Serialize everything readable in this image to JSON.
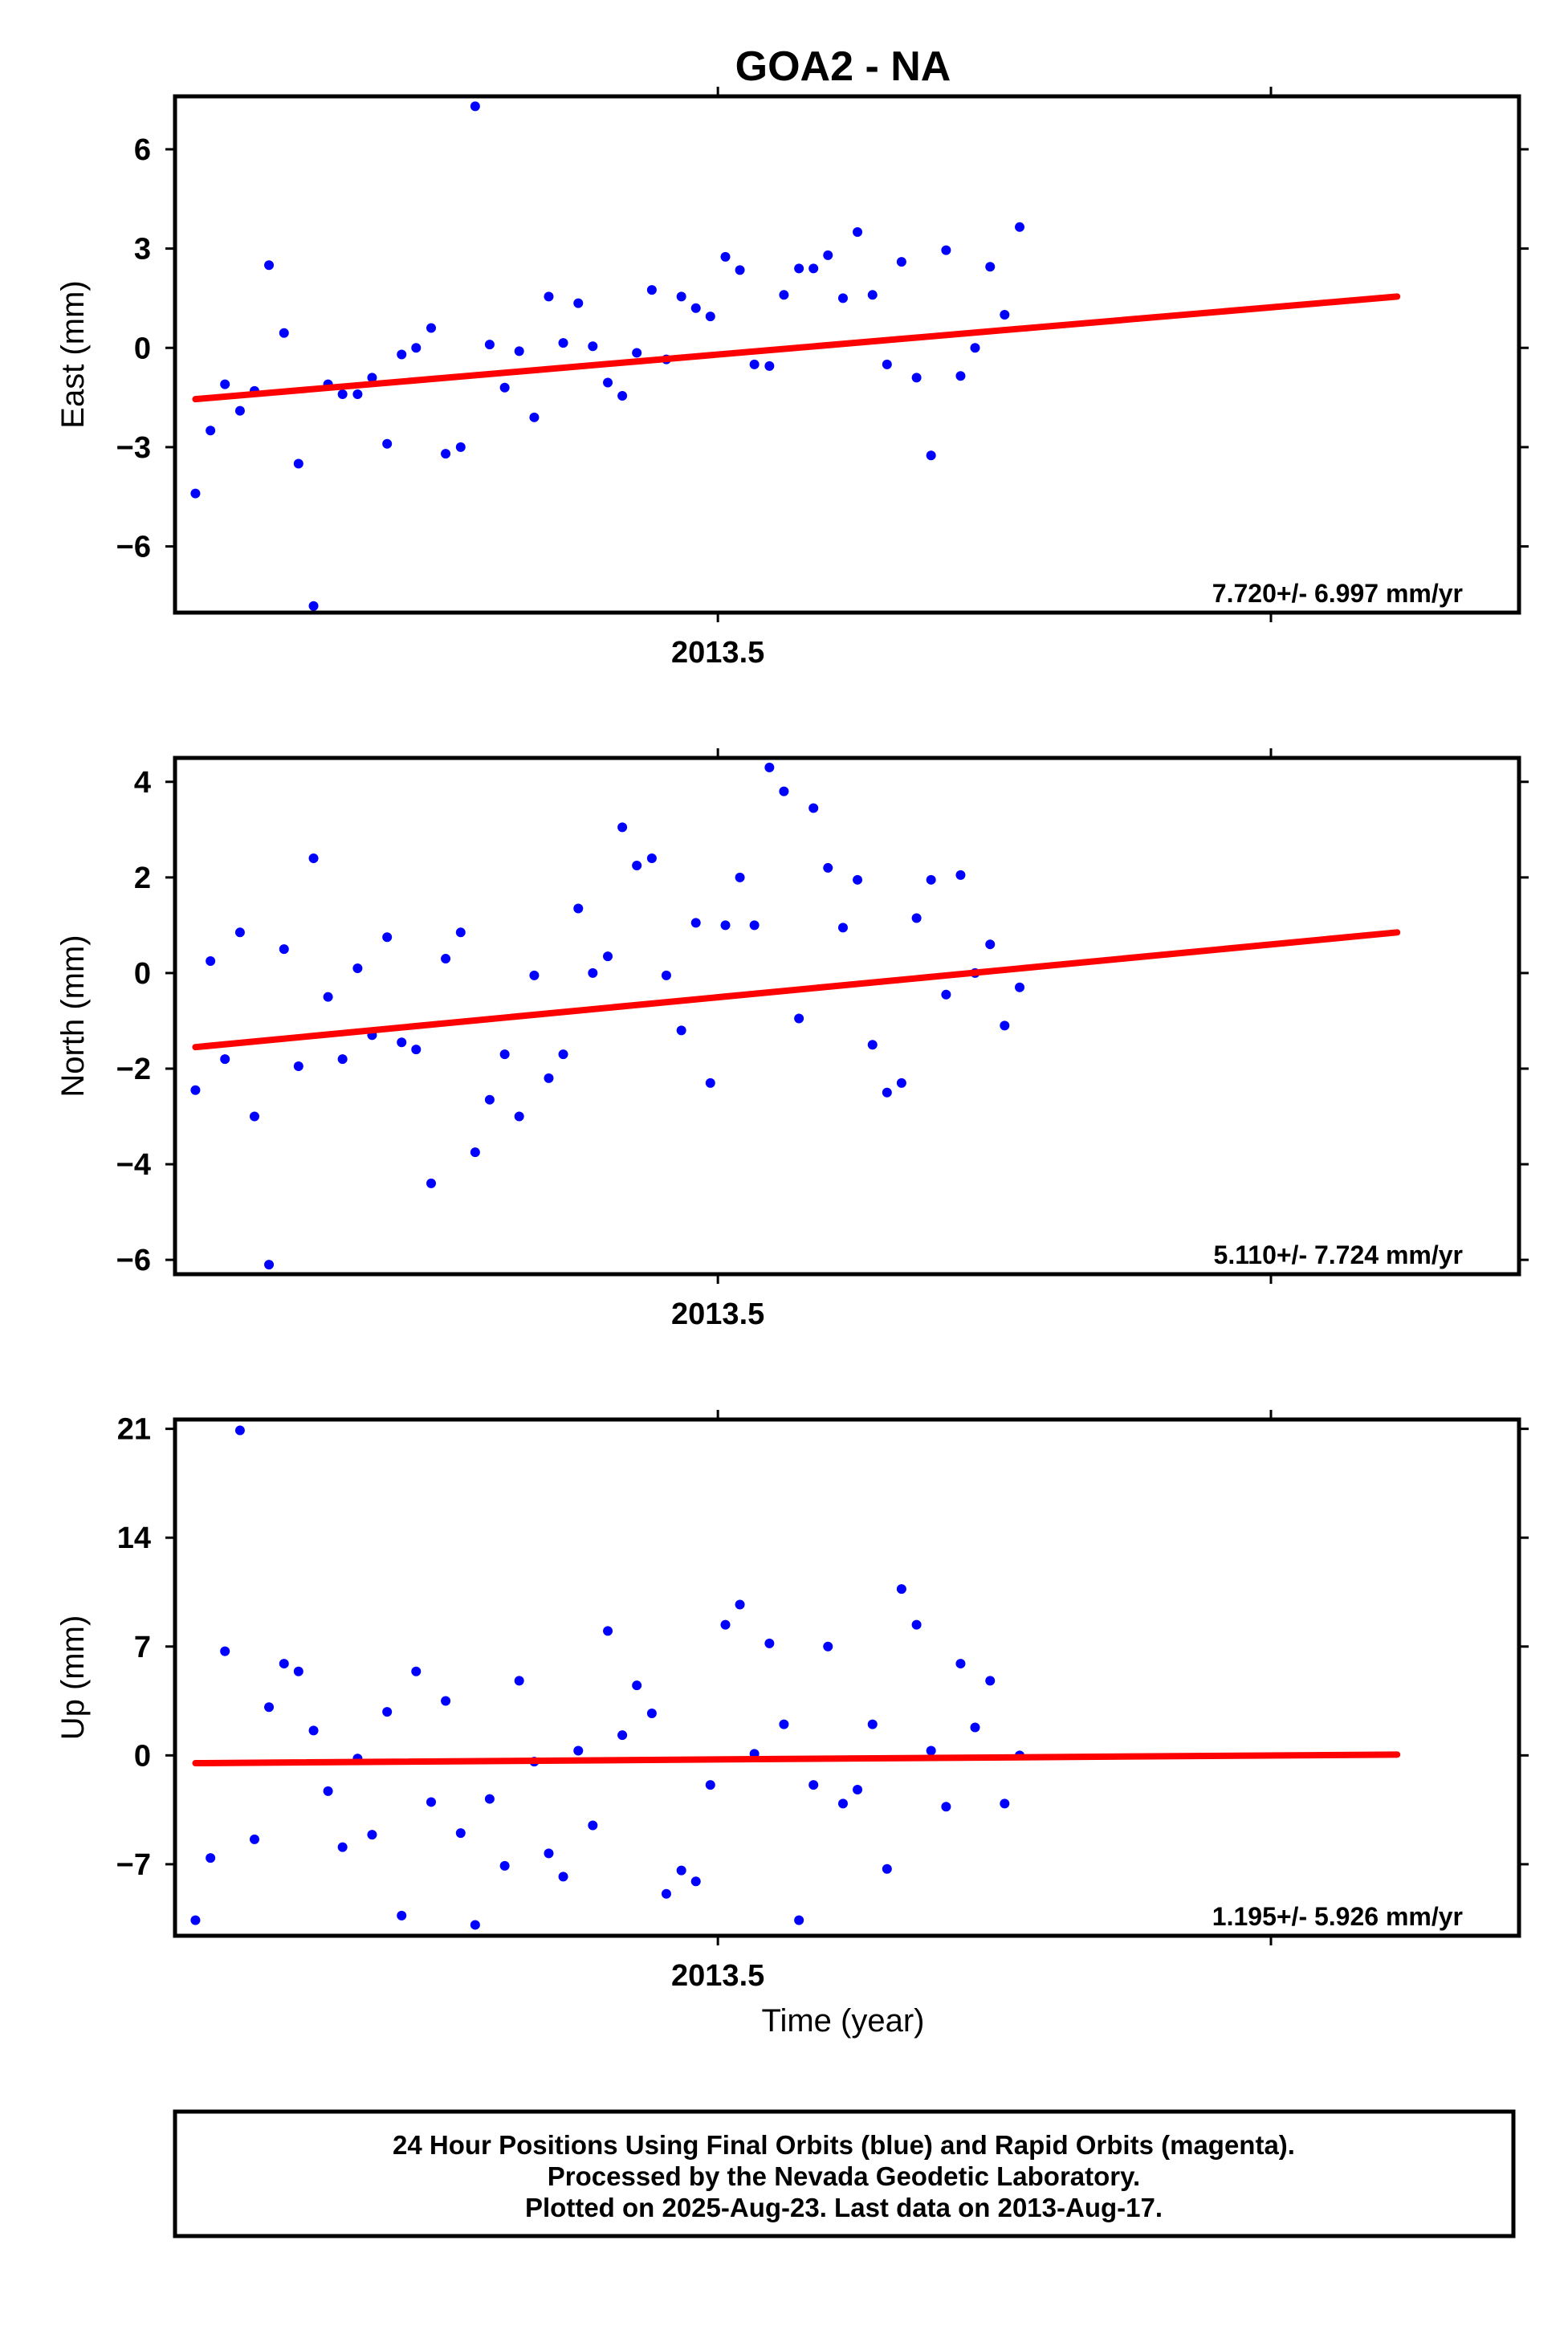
{
  "title": "GOA2 - NA",
  "xlabel": "Time (year)",
  "footer": {
    "lines": [
      "24 Hour Positions Using Final Orbits (blue) and Rapid Orbits (magenta).",
      "Processed by the Nevada Geodetic Laboratory.",
      "Plotted on 2025-Aug-23. Last data on 2013-Aug-17."
    ]
  },
  "colors": {
    "points": "#0000ff",
    "trend": "#ff0000",
    "frame": "#000000"
  },
  "chart_data": [
    {
      "type": "scatter",
      "ylabel": "East (mm)",
      "xlim": [
        2013.3989,
        2013.6492
      ],
      "ylim": [
        -8,
        7.6
      ],
      "xticks": [
        2013.5
      ],
      "xtick_labels": [
        "2013.5"
      ],
      "yticks": [
        6,
        3,
        0,
        -3,
        -6
      ],
      "ytick_labels": [
        "6",
        "3",
        "0",
        "−3",
        "−6"
      ],
      "rate_label": "7.720+/- 6.997 mm/yr",
      "trend": {
        "x": [
          2013.4027,
          2013.6265
        ],
        "y": [
          -1.55,
          1.55
        ]
      },
      "x": [
        2013.4027,
        2013.4055,
        2013.4082,
        2013.411,
        2013.4137,
        2013.4164,
        2013.4192,
        2013.4219,
        2013.4247,
        2013.4274,
        2013.4301,
        2013.4329,
        2013.4356,
        2013.4384,
        2013.4411,
        2013.4438,
        2013.4466,
        2013.4493,
        2013.4521,
        2013.4548,
        2013.4575,
        2013.4603,
        2013.463,
        2013.4658,
        2013.4685,
        2013.4712,
        2013.474,
        2013.4767,
        2013.4795,
        2013.4822,
        2013.4849,
        2013.4877,
        2013.4904,
        2013.4932,
        2013.4959,
        2013.4986,
        2013.5014,
        2013.5041,
        2013.5068,
        2013.5096,
        2013.5123,
        2013.5151,
        2013.5178,
        2013.5205,
        2013.5233,
        2013.526,
        2013.5288,
        2013.5315,
        2013.5342,
        2013.537,
        2013.5397,
        2013.5425,
        2013.5452,
        2013.5479,
        2013.5507,
        2013.5534,
        2013.5562,
        2013.5589,
        2013.5616,
        2013.5644,
        2013.5671,
        2013.5699,
        2013.5726,
        2013.5753,
        2013.5781,
        2013.5808,
        2013.5836,
        2013.5863,
        2013.589,
        2013.5918
      ],
      "y": [
        -4.4,
        -2.5,
        -1.1,
        -1.9,
        -1.3,
        2.5,
        0.45,
        -3.5,
        -7.8,
        -1.1,
        -1.4,
        -1.4,
        -0.9,
        -2.9,
        -0.2,
        0.0,
        0.6,
        -3.2,
        -3.0,
        7.3,
        0.1,
        -1.2,
        -0.1,
        -2.1,
        1.55,
        0.15,
        1.35,
        0.05,
        -1.05,
        -1.45,
        -0.15,
        1.75,
        -0.35,
        1.55,
        1.2,
        0.95,
        2.75,
        2.35,
        -0.5,
        -0.55,
        1.6,
        2.4,
        2.4,
        2.8,
        1.5,
        3.5,
        1.6,
        -0.5,
        2.6,
        -0.9,
        -3.25,
        2.95,
        -0.85,
        0.0,
        2.45,
        1.0,
        3.65,
        null,
        null,
        null,
        null,
        null,
        null,
        null,
        null,
        null,
        null,
        null,
        null,
        null
      ]
    },
    {
      "type": "scatter",
      "ylabel": "North (mm)",
      "xlim": [
        2013.3989,
        2013.6492
      ],
      "ylim": [
        -6.3,
        4.5
      ],
      "xticks": [
        2013.5
      ],
      "xtick_labels": [
        "2013.5"
      ],
      "yticks": [
        4,
        2,
        0,
        -2,
        -4,
        -6
      ],
      "ytick_labels": [
        "4",
        "2",
        "0",
        "−2",
        "−4",
        "−6"
      ],
      "rate_label": "5.110+/- 7.724 mm/yr",
      "trend": {
        "x": [
          2013.4027,
          2013.6265
        ],
        "y": [
          -1.55,
          0.85
        ]
      },
      "x": [
        2013.4027,
        2013.4055,
        2013.4082,
        2013.411,
        2013.4137,
        2013.4164,
        2013.4192,
        2013.4219,
        2013.4247,
        2013.4274,
        2013.4301,
        2013.4329,
        2013.4356,
        2013.4384,
        2013.4411,
        2013.4438,
        2013.4466,
        2013.4493,
        2013.4521,
        2013.4548,
        2013.4575,
        2013.4603,
        2013.463,
        2013.4658,
        2013.4685,
        2013.4712,
        2013.474,
        2013.4767,
        2013.4795,
        2013.4822,
        2013.4849,
        2013.4877,
        2013.4904,
        2013.4932,
        2013.4959,
        2013.4986,
        2013.5014,
        2013.5041,
        2013.5068,
        2013.5096,
        2013.5123,
        2013.5151,
        2013.5178,
        2013.5205,
        2013.5233,
        2013.526,
        2013.5288,
        2013.5315,
        2013.5342,
        2013.537,
        2013.5397,
        2013.5425,
        2013.5452,
        2013.5479,
        2013.5507,
        2013.5534,
        2013.5562
      ],
      "y": [
        -2.45,
        0.25,
        -1.8,
        0.85,
        -3.0,
        -6.1,
        0.5,
        -1.95,
        2.4,
        -0.5,
        -1.8,
        0.1,
        -1.3,
        0.75,
        -1.45,
        -1.6,
        -4.4,
        0.3,
        0.85,
        -3.75,
        -2.65,
        -1.7,
        -3.0,
        -0.05,
        -2.2,
        -1.7,
        1.35,
        0.0,
        0.35,
        3.05,
        2.25,
        2.4,
        -0.05,
        -1.2,
        1.05,
        -2.3,
        1.0,
        2.0,
        1.0,
        4.3,
        3.8,
        -0.95,
        3.45,
        2.2,
        0.95,
        1.95,
        -1.5,
        -2.5,
        -2.3,
        1.15,
        1.95,
        -0.45,
        2.05,
        0.0,
        0.6,
        -1.1,
        -0.3
      ]
    },
    {
      "type": "scatter",
      "ylabel": "Up (mm)",
      "xlim": [
        2013.3989,
        2013.6492
      ],
      "ylim": [
        -11.6,
        21.6
      ],
      "xticks": [
        2013.5
      ],
      "xtick_labels": [
        "2013.5"
      ],
      "yticks": [
        21,
        14,
        7,
        0,
        -7
      ],
      "ytick_labels": [
        "21",
        "14",
        "7",
        "0",
        "−7"
      ],
      "rate_label": "1.195+/- 5.926 mm/yr",
      "trend": {
        "x": [
          2013.4027,
          2013.6265
        ],
        "y": [
          -0.5,
          0.05
        ]
      },
      "x": [
        2013.4027,
        2013.4055,
        2013.4082,
        2013.411,
        2013.4137,
        2013.4164,
        2013.4192,
        2013.4219,
        2013.4247,
        2013.4274,
        2013.4301,
        2013.4329,
        2013.4356,
        2013.4384,
        2013.4411,
        2013.4438,
        2013.4466,
        2013.4493,
        2013.4521,
        2013.4548,
        2013.4575,
        2013.4603,
        2013.463,
        2013.4658,
        2013.4685,
        2013.4712,
        2013.474,
        2013.4767,
        2013.4795,
        2013.4822,
        2013.4849,
        2013.4877,
        2013.4904,
        2013.4932,
        2013.4959,
        2013.4986,
        2013.5014,
        2013.5041,
        2013.5068,
        2013.5096,
        2013.5123,
        2013.5151,
        2013.5178,
        2013.5205,
        2013.5233,
        2013.526,
        2013.5288,
        2013.5315,
        2013.5342,
        2013.537,
        2013.5397,
        2013.5425,
        2013.5452,
        2013.5479,
        2013.5507,
        2013.5534,
        2013.5562
      ],
      "y": [
        -10.6,
        -6.6,
        6.7,
        20.9,
        -5.4,
        3.1,
        5.9,
        5.4,
        1.6,
        -2.3,
        -5.9,
        -0.2,
        -5.1,
        2.8,
        -10.3,
        5.4,
        -3.0,
        3.5,
        -5.0,
        -10.9,
        -2.8,
        -7.1,
        4.8,
        -0.4,
        -6.3,
        -7.8,
        0.3,
        -4.5,
        8.0,
        1.3,
        4.5,
        2.7,
        -8.9,
        -7.4,
        -8.1,
        -1.9,
        8.4,
        9.7,
        0.1,
        7.2,
        2.0,
        -10.6,
        -1.9,
        7.0,
        -3.1,
        -2.2,
        2.0,
        -7.3,
        10.7,
        8.4,
        0.3,
        -3.3,
        5.9,
        1.8,
        4.8,
        -3.1,
        0.0
      ]
    }
  ]
}
